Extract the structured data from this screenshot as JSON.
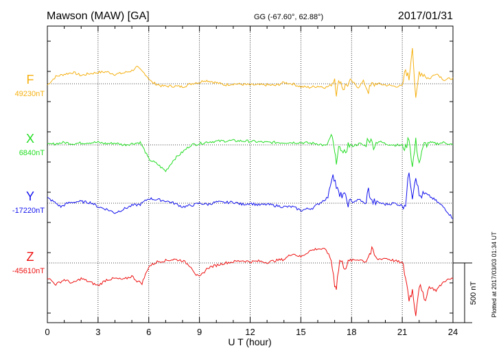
{
  "header": {
    "station": "Mawson (MAW)  [GA]",
    "coords": "GG (-67.60°,  62.88°)",
    "date": "2017/01/31"
  },
  "side_note": "Plotted at 2017/03/03 01:34  UT",
  "scale_label": "500 nT",
  "chart_data": {
    "type": "line",
    "title": "Mawson (MAW)  [GA]",
    "xlabel": "U T (hour)",
    "ylabel": "",
    "xlim": [
      0,
      24
    ],
    "xticks": [
      "0",
      "3",
      "6",
      "9",
      "12",
      "15",
      "18",
      "21",
      "24"
    ],
    "grid": true,
    "scale_bar_nT": 500,
    "series": [
      {
        "name": "F",
        "baseline_label": "49230nT",
        "baseline": 49230,
        "color": "#f5b010",
        "x": [
          0,
          0.5,
          1,
          1.5,
          2,
          2.5,
          3,
          3.5,
          4,
          4.5,
          5,
          5.3,
          5.8,
          6.2,
          6.8,
          7.5,
          8,
          8.5,
          8.8,
          9,
          9.3,
          9.7,
          10.5,
          11,
          12,
          13,
          13.5,
          14,
          14.5,
          15,
          15.5,
          16,
          16.5,
          16.8,
          17,
          17.1,
          17.3,
          17.5,
          17.7,
          18,
          18.4,
          18.7,
          19,
          19.2,
          19.5,
          20,
          20.5,
          21,
          21.2,
          21.4,
          21.6,
          21.8,
          22,
          22.3,
          22.6,
          23,
          23.5,
          24
        ],
        "y": [
          -10,
          60,
          80,
          95,
          70,
          85,
          95,
          100,
          80,
          90,
          110,
          140,
          80,
          10,
          -20,
          -20,
          -25,
          0,
          10,
          10,
          30,
          20,
          -10,
          0,
          -10,
          -10,
          -15,
          10,
          0,
          -25,
          -30,
          -20,
          -30,
          -10,
          50,
          -80,
          40,
          -40,
          -10,
          20,
          -30,
          20,
          -60,
          -10,
          0,
          -10,
          -20,
          -20,
          120,
          40,
          330,
          -150,
          100,
          80,
          40,
          90,
          30,
          50
        ]
      },
      {
        "name": "X",
        "baseline_label": "6840nT",
        "baseline": 6840,
        "color": "#22dd22",
        "x": [
          0,
          0.5,
          1,
          1.5,
          2,
          2.5,
          3,
          3.5,
          4,
          4.5,
          5,
          5.5,
          5.8,
          6,
          6.5,
          7,
          7.5,
          8,
          8.5,
          9,
          9.5,
          10,
          11,
          12,
          13,
          14,
          15,
          16,
          16.5,
          16.8,
          17,
          17.1,
          17.3,
          17.5,
          17.8,
          18,
          18.5,
          18.8,
          19,
          19.3,
          19.6,
          20,
          20.5,
          21,
          21.2,
          21.4,
          21.6,
          21.8,
          22,
          22.3,
          22.6,
          23,
          23.5,
          24
        ],
        "y": [
          0,
          10,
          20,
          10,
          15,
          20,
          20,
          10,
          15,
          0,
          10,
          20,
          -60,
          -120,
          -160,
          -220,
          -120,
          -60,
          0,
          10,
          25,
          30,
          35,
          30,
          20,
          20,
          20,
          10,
          -10,
          80,
          -50,
          -180,
          20,
          -100,
          0,
          -10,
          10,
          -10,
          60,
          -5,
          30,
          10,
          0,
          -5,
          -30,
          70,
          -190,
          30,
          -150,
          0,
          20,
          10,
          20,
          0
        ]
      },
      {
        "name": "Y",
        "baseline_label": "-17220nT",
        "baseline": -17220,
        "color": "#1010ee",
        "x": [
          0,
          0.3,
          0.8,
          1.2,
          1.8,
          2.2,
          2.6,
          3,
          3.5,
          4,
          4.5,
          5,
          5.5,
          6,
          6.5,
          7,
          7.5,
          8,
          8.5,
          9,
          9.5,
          10,
          10.5,
          11,
          11.5,
          12,
          12.5,
          13,
          13.5,
          14,
          14.5,
          15,
          15.3,
          15.7,
          16,
          16.3,
          16.6,
          16.9,
          17.1,
          17.3,
          17.5,
          17.8,
          18,
          18.5,
          18.8,
          19,
          19.2,
          19.5,
          20,
          20.5,
          21,
          21.2,
          21.4,
          21.6,
          21.8,
          22,
          22.3,
          22.6,
          23,
          23.5,
          24
        ],
        "y": [
          45,
          20,
          -30,
          0,
          15,
          10,
          5,
          -30,
          -50,
          -80,
          -50,
          -20,
          -10,
          40,
          30,
          20,
          0,
          -30,
          -20,
          0,
          -10,
          10,
          5,
          10,
          -10,
          0,
          -15,
          -10,
          -20,
          -30,
          -30,
          -60,
          -50,
          -40,
          -10,
          20,
          50,
          260,
          140,
          50,
          80,
          0,
          10,
          30,
          -10,
          110,
          10,
          10,
          -10,
          0,
          -20,
          0,
          270,
          60,
          240,
          60,
          70,
          60,
          20,
          -40,
          -130
        ]
      },
      {
        "name": "Z",
        "baseline_label": "-45610nT",
        "baseline": -45610,
        "color": "#ee1010",
        "x": [
          0,
          0.5,
          1,
          1.5,
          2,
          2.5,
          3,
          3.5,
          4,
          4.5,
          5,
          5.3,
          5.6,
          6,
          6.5,
          7,
          7.5,
          8,
          8.5,
          8.8,
          9,
          9.5,
          10,
          10.5,
          11,
          11.5,
          12,
          12.5,
          13,
          13.5,
          14,
          14.5,
          15,
          15.5,
          16,
          16.5,
          16.8,
          17,
          17.1,
          17.3,
          17.6,
          18,
          18.5,
          18.8,
          19,
          19.2,
          19.5,
          20,
          20.5,
          21,
          21.2,
          21.4,
          21.6,
          21.8,
          22,
          22.3,
          22.6,
          23,
          23.5,
          24
        ],
        "y": [
          -120,
          -180,
          -140,
          -170,
          -130,
          -160,
          -190,
          -140,
          -130,
          -140,
          -110,
          -150,
          -170,
          -30,
          10,
          20,
          30,
          20,
          -30,
          -100,
          -120,
          -40,
          -20,
          0,
          10,
          20,
          10,
          15,
          5,
          20,
          30,
          80,
          50,
          100,
          120,
          110,
          20,
          -170,
          -200,
          20,
          -30,
          20,
          30,
          10,
          60,
          100,
          30,
          40,
          20,
          0,
          -120,
          -300,
          -230,
          -420,
          -180,
          -310,
          -200,
          -230,
          -150,
          -130
        ]
      }
    ]
  }
}
